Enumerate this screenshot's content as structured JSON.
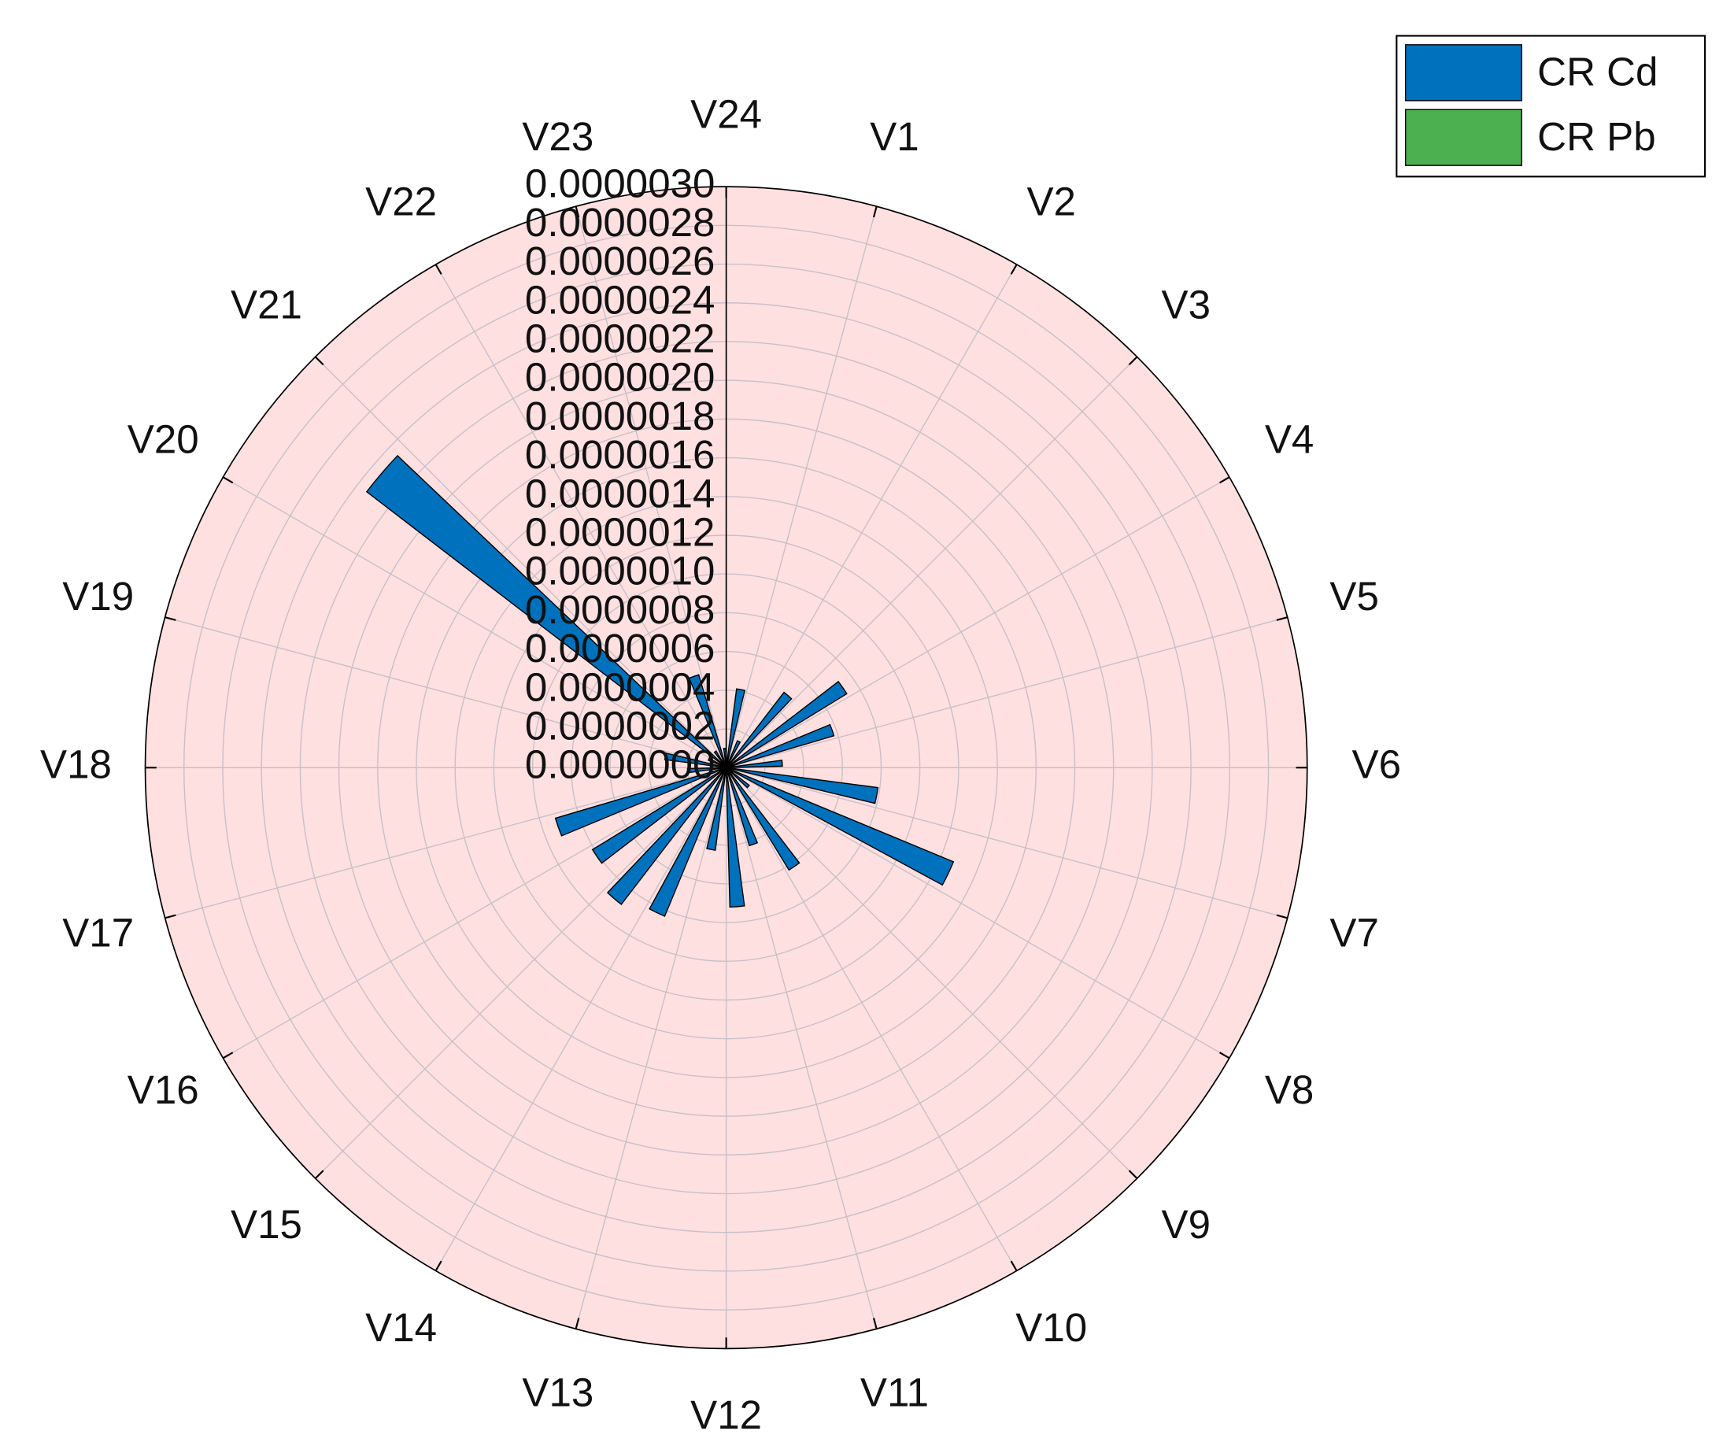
{
  "chart_data": {
    "type": "polar-bar",
    "categories": [
      "V1",
      "V2",
      "V3",
      "V4",
      "V5",
      "V6",
      "V7",
      "V8",
      "V9",
      "V10",
      "V11",
      "V12",
      "V13",
      "V14",
      "V15",
      "V16",
      "V17",
      "V18",
      "V19",
      "V20",
      "V21",
      "V22",
      "V23",
      "V24"
    ],
    "series": [
      {
        "name": "CR Cd",
        "color": "#0072bd",
        "values": [
          4.1e-07,
          1.5e-07,
          4.9e-07,
          7.3e-07,
          5.8e-07,
          2.9e-07,
          7.9e-07,
          1.27e-06,
          1.5e-07,
          6.2e-07,
          4.2e-07,
          7.2e-07,
          4.3e-07,
          8.3e-07,
          8.9e-07,
          8.1e-07,
          9.2e-07,
          2e-07,
          3.2e-07,
          1e-07,
          2.34e-06,
          1e-07,
          5e-07,
          1e-07
        ]
      },
      {
        "name": "CR Pb",
        "color": "#4caf50",
        "values": [
          3e-08,
          2e-08,
          3e-08,
          3e-08,
          4e-08,
          3e-08,
          3e-08,
          3e-08,
          2e-08,
          3e-08,
          2e-08,
          3e-08,
          2e-08,
          3e-08,
          3e-08,
          3e-08,
          3e-08,
          2e-08,
          2e-08,
          2e-08,
          4e-08,
          2e-08,
          2e-08,
          2e-08
        ]
      }
    ],
    "ylim": [
      0,
      3e-06
    ],
    "yticks": [
      {
        "value": 0,
        "label": "0.0000000"
      },
      {
        "value": 2e-07,
        "label": "0.0000002"
      },
      {
        "value": 4e-07,
        "label": "0.0000004"
      },
      {
        "value": 6e-07,
        "label": "0.0000006"
      },
      {
        "value": 8e-07,
        "label": "0.0000008"
      },
      {
        "value": 1e-06,
        "label": "0.0000010"
      },
      {
        "value": 1.2e-06,
        "label": "0.0000012"
      },
      {
        "value": 1.4e-06,
        "label": "0.0000014"
      },
      {
        "value": 1.6e-06,
        "label": "0.0000016"
      },
      {
        "value": 1.8e-06,
        "label": "0.0000018"
      },
      {
        "value": 2e-06,
        "label": "0.0000020"
      },
      {
        "value": 2.2e-06,
        "label": "0.0000022"
      },
      {
        "value": 2.4e-06,
        "label": "0.0000024"
      },
      {
        "value": 2.6e-06,
        "label": "0.0000026"
      },
      {
        "value": 2.8e-06,
        "label": "0.0000028"
      },
      {
        "value": 3e-06,
        "label": "0.0000030"
      }
    ],
    "grid": true,
    "background": "#ffe0e0",
    "legend": "top-right"
  }
}
